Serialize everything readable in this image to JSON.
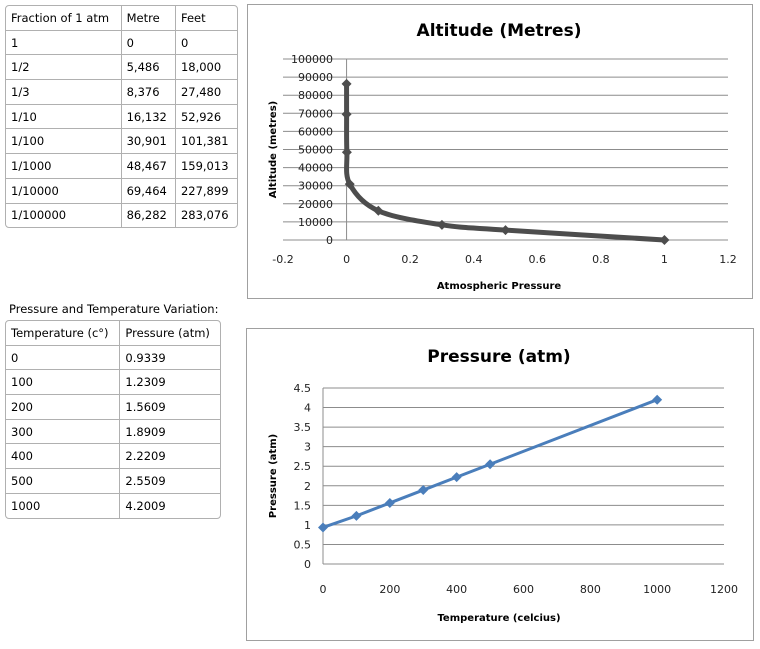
{
  "altitude_table": {
    "headers": [
      "Fraction of 1 atm",
      "Metre",
      "Feet"
    ],
    "rows": [
      [
        "1",
        "0",
        "0"
      ],
      [
        "1/2",
        "5,486",
        "18,000"
      ],
      [
        "1/3",
        "8,376",
        "27,480"
      ],
      [
        "1/10",
        "16,132",
        "52,926"
      ],
      [
        "1/100",
        "30,901",
        "101,381"
      ],
      [
        "1/1000",
        "48,467",
        "159,013"
      ],
      [
        "1/10000",
        "69,464",
        "227,899"
      ],
      [
        "1/100000",
        "86,282",
        "283,076"
      ]
    ]
  },
  "pressure_table": {
    "caption": "Pressure and Temperature Variation:",
    "headers": [
      "Temperature (c°)",
      "Pressure (atm)"
    ],
    "rows": [
      [
        "0",
        "0.9339"
      ],
      [
        "100",
        "1.2309"
      ],
      [
        "200",
        "1.5609"
      ],
      [
        "300",
        "1.8909"
      ],
      [
        "400",
        "2.2209"
      ],
      [
        "500",
        "2.5509"
      ],
      [
        "1000",
        "4.2009"
      ]
    ]
  },
  "chart_data": [
    {
      "type": "line",
      "title": "Altitude (Metres)",
      "xlabel": "Atmospheric Pressure",
      "ylabel": "Altitude (metres)",
      "x": [
        1,
        0.5,
        0.3,
        0.1,
        0.01,
        0.001,
        0.0001,
        1e-05
      ],
      "y": [
        0,
        5486,
        8376,
        16132,
        30901,
        48467,
        69464,
        86282
      ],
      "xlim": [
        -0.2,
        1.2
      ],
      "ylim": [
        0,
        100000
      ],
      "xticks": [
        "-0.2",
        "0",
        "0.2",
        "0.4",
        "0.6",
        "0.8",
        "1",
        "1.2"
      ],
      "yticks": [
        "0",
        "10000",
        "20000",
        "30000",
        "40000",
        "50000",
        "60000",
        "70000",
        "80000",
        "90000",
        "100000"
      ],
      "smooth": true,
      "grid": true,
      "color": "#4d4d4d"
    },
    {
      "type": "line",
      "title": "Pressure (atm)",
      "xlabel": "Temperature (celcius)",
      "ylabel": "Pressure (atm)",
      "x": [
        0,
        100,
        200,
        300,
        400,
        500,
        1000
      ],
      "y": [
        0.9339,
        1.2309,
        1.5609,
        1.8909,
        2.2209,
        2.5509,
        4.2009
      ],
      "xlim": [
        0,
        1200
      ],
      "ylim": [
        0,
        4.5
      ],
      "xticks": [
        "0",
        "200",
        "400",
        "600",
        "800",
        "1000",
        "1200"
      ],
      "yticks": [
        "0",
        "0.5",
        "1",
        "1.5",
        "2",
        "2.5",
        "3",
        "3.5",
        "4",
        "4.5"
      ],
      "smooth": false,
      "grid": true,
      "color": "#4a7ebb"
    }
  ]
}
